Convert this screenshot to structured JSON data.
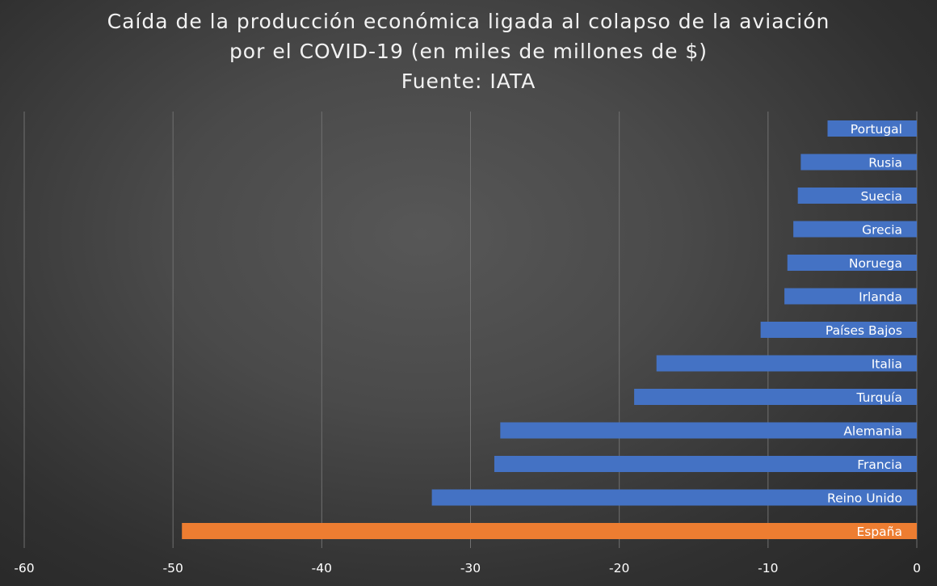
{
  "chart_data": {
    "type": "bar",
    "orientation": "horizontal",
    "title_lines": [
      "Caída de la producción económica ligada al colapso de la aviación",
      "por el COVID-19 (en miles de millones de $)",
      "Fuente: IATA"
    ],
    "xlabel": "",
    "ylabel": "",
    "xlim": [
      -60,
      0
    ],
    "x_ticks": [
      -60,
      -50,
      -40,
      -30,
      -20,
      -10,
      0
    ],
    "grid": "vertical",
    "legend": "none",
    "colors": {
      "default": "#4472c4",
      "highlight": "#ed7d31"
    },
    "categories": [
      "Portugal",
      "Rusia",
      "Suecia",
      "Grecia",
      "Noruega",
      "Irlanda",
      "Países Bajos",
      "Italia",
      "Turquía",
      "Alemania",
      "Francia",
      "Reino Unido",
      "España"
    ],
    "values": [
      -6,
      -7.8,
      -8,
      -8.3,
      -8.7,
      -8.9,
      -10.5,
      -17.5,
      -19,
      -28,
      -28.4,
      -32.6,
      -49.4
    ],
    "highlight": [
      "España"
    ]
  }
}
